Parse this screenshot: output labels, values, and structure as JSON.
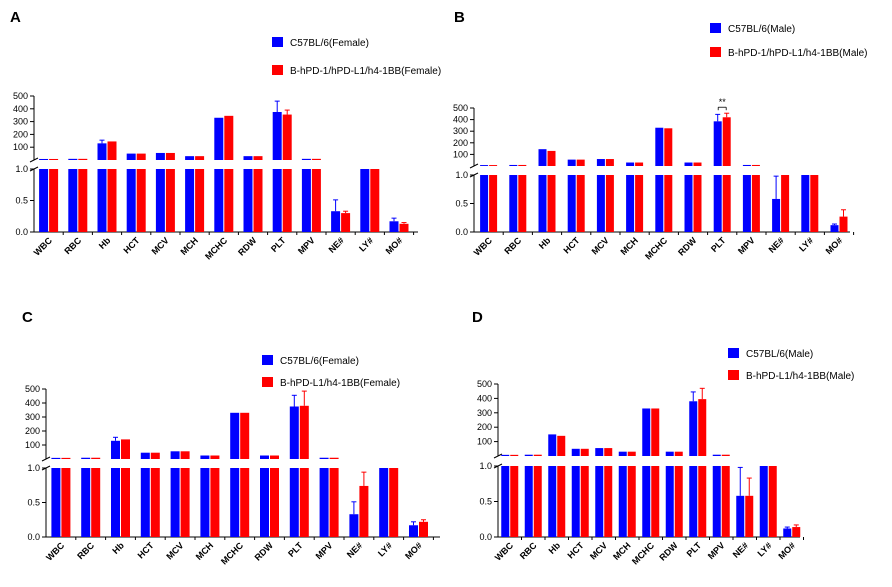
{
  "colors": {
    "series_a": "#0000ff",
    "series_b": "#ff0000",
    "axis": "#000000"
  },
  "chart_data": [
    {
      "type": "bar",
      "panel_label": "A",
      "categories": [
        "WBC",
        "RBC",
        "Hb",
        "HCT",
        "MCV",
        "MCH",
        "MCHC",
        "RDW",
        "PLT",
        "MPV",
        "NE#",
        "LY#",
        "MO#"
      ],
      "broken_axis": {
        "lower_range": [
          0,
          1.0
        ],
        "lower_ticks": [
          "0.0",
          "0.5",
          "1.0"
        ],
        "upper_range": [
          0,
          500
        ],
        "upper_ticks": [
          "100",
          "200",
          "300",
          "400",
          "500"
        ]
      },
      "legend_position": "top-right",
      "grid": false,
      "series": [
        {
          "name": "C57BL/6(Female)",
          "values": [
            8,
            9,
            130,
            50,
            55,
            30,
            330,
            30,
            375,
            9,
            0.33,
            1.0,
            0.17
          ],
          "errors": [
            0,
            0,
            25,
            0,
            0,
            0,
            0,
            0,
            85,
            0,
            0.18,
            0,
            0.05
          ]
        },
        {
          "name": "B-hPD-1/hPD-L1/h4-1BB(Female)",
          "values": [
            8,
            9,
            145,
            50,
            55,
            30,
            345,
            30,
            355,
            9,
            0.3,
            1.0,
            0.13
          ],
          "errors": [
            0,
            0,
            0,
            0,
            0,
            0,
            0,
            0,
            35,
            0,
            0.03,
            0,
            0.02
          ]
        }
      ],
      "annotations": []
    },
    {
      "type": "bar",
      "panel_label": "B",
      "categories": [
        "WBC",
        "RBC",
        "Hb",
        "HCT",
        "MCV",
        "MCH",
        "MCHC",
        "RDW",
        "PLT",
        "MPV",
        "NE#",
        "LY#",
        "MO#"
      ],
      "broken_axis": {
        "lower_range": [
          0,
          1.0
        ],
        "lower_ticks": [
          "0.0",
          "0.5",
          "1.0"
        ],
        "upper_range": [
          0,
          500
        ],
        "upper_ticks": [
          "100",
          "200",
          "300",
          "400",
          "500"
        ]
      },
      "legend_position": "top-right",
      "grid": false,
      "series": [
        {
          "name": "C57BL/6(Male)",
          "values": [
            8,
            9,
            145,
            55,
            60,
            30,
            330,
            30,
            385,
            9,
            0.58,
            1.0,
            0.12
          ],
          "errors": [
            0,
            0,
            0,
            0,
            0,
            0,
            0,
            0,
            60,
            0,
            0.4,
            0,
            0.02
          ]
        },
        {
          "name": "B-hPD-1/hPD-L1/h4-1BB(Male)",
          "values": [
            8,
            9,
            130,
            55,
            60,
            30,
            325,
            30,
            420,
            9,
            1.0,
            1.0,
            0.27
          ],
          "errors": [
            0,
            0,
            0,
            0,
            0,
            0,
            0,
            0,
            35,
            0,
            0,
            0,
            0.12
          ]
        }
      ],
      "annotations": [
        {
          "category": "PLT",
          "text": "**"
        }
      ]
    },
    {
      "type": "bar",
      "panel_label": "C",
      "categories": [
        "WBC",
        "RBC",
        "Hb",
        "HCT",
        "MCV",
        "MCH",
        "MCHC",
        "RDW",
        "PLT",
        "MPV",
        "NE#",
        "LY#",
        "MO#"
      ],
      "broken_axis": {
        "lower_range": [
          0,
          1.0
        ],
        "lower_ticks": [
          "0.0",
          "0.5",
          "1.0"
        ],
        "upper_range": [
          0,
          500
        ],
        "upper_ticks": [
          "100",
          "200",
          "300",
          "400",
          "500"
        ]
      },
      "legend_position": "top-right",
      "grid": false,
      "series": [
        {
          "name": "C57BL/6(Female)",
          "values": [
            8,
            9,
            130,
            45,
            55,
            25,
            330,
            25,
            375,
            9,
            0.33,
            1.0,
            0.17
          ],
          "errors": [
            0,
            0,
            25,
            0,
            0,
            0,
            0,
            0,
            80,
            0,
            0.18,
            0,
            0.05
          ]
        },
        {
          "name": "B-hPD-L1/h4-1BB(Female)",
          "values": [
            8,
            9,
            140,
            45,
            55,
            25,
            330,
            25,
            380,
            9,
            0.74,
            1.0,
            0.22
          ],
          "errors": [
            0,
            0,
            0,
            0,
            0,
            0,
            0,
            0,
            105,
            0,
            0.2,
            0,
            0.03
          ]
        }
      ],
      "annotations": []
    },
    {
      "type": "bar",
      "panel_label": "D",
      "categories": [
        "WBC",
        "RBC",
        "Hb",
        "HCT",
        "MCV",
        "MCH",
        "MCHC",
        "RDW",
        "PLT",
        "MPV",
        "NE#",
        "LY#",
        "MO#"
      ],
      "broken_axis": {
        "lower_range": [
          0,
          1.0
        ],
        "lower_ticks": [
          "0.0",
          "0.5",
          "1.0"
        ],
        "upper_range": [
          0,
          500
        ],
        "upper_ticks": [
          "100",
          "200",
          "300",
          "400",
          "500"
        ]
      },
      "legend_position": "top-right",
      "grid": false,
      "series": [
        {
          "name": "C57BL/6(Male)",
          "values": [
            8,
            9,
            150,
            50,
            55,
            30,
            330,
            30,
            380,
            9,
            0.58,
            1.0,
            0.12
          ],
          "errors": [
            0,
            0,
            0,
            0,
            0,
            0,
            0,
            0,
            65,
            0,
            0.4,
            0,
            0.02
          ]
        },
        {
          "name": "B-hPD-L1/h4-1BB(Male)",
          "values": [
            8,
            9,
            140,
            50,
            55,
            30,
            330,
            30,
            395,
            9,
            0.58,
            1.0,
            0.14
          ],
          "errors": [
            0,
            0,
            0,
            0,
            0,
            0,
            0,
            0,
            75,
            0,
            0.25,
            0,
            0.03
          ]
        }
      ],
      "annotations": []
    }
  ]
}
